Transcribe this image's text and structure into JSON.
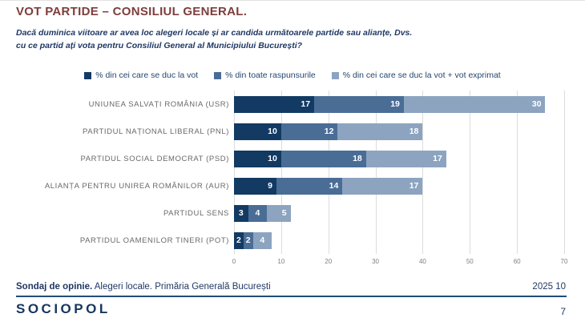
{
  "header": {
    "title": "VOT PARTIDE – CONSILIUL GENERAL.",
    "question": "Dacă duminica viitoare ar avea loc alegeri locale și ar candida următoarele partide sau alianțe, Dvs. cu ce partid ați vota pentru Consiliul General al Municipiului București?"
  },
  "chart_data": {
    "type": "bar",
    "orientation": "horizontal_stacked",
    "title": "",
    "categories": [
      "UNIUNEA SALVAȚI ROMÂNIA (USR)",
      "PARTIDUL NAȚIONAL LIBERAL (PNL)",
      "PARTIDUL SOCIAL DEMOCRAT (PSD)",
      "ALIANȚA PENTRU UNIREA ROMÂNILOR (AUR)",
      "PARTIDUL SENS",
      "PARTIDUL OAMENILOR TINERI (POT)"
    ],
    "series": [
      {
        "name": "% din cei care se duc la vot",
        "color": "#123A63",
        "values": [
          17,
          10,
          10,
          9,
          3,
          2
        ]
      },
      {
        "name": "% din toate raspunsurile",
        "color": "#4A6D96",
        "values": [
          19,
          12,
          18,
          14,
          4,
          2
        ]
      },
      {
        "name": "% din cei care se duc la vot + vot exprimat",
        "color": "#8CA4C0",
        "values": [
          30,
          18,
          17,
          17,
          5,
          4
        ]
      }
    ],
    "xlim": [
      0,
      70
    ],
    "xticks": [
      0,
      10,
      20,
      30,
      40,
      50,
      60,
      70
    ],
    "grid": true,
    "legend_position": "top",
    "value_labels": "inside_end",
    "value_label_color": "#ffffff"
  },
  "footer": {
    "source_bold": "Sondaj de opinie.",
    "source_rest": " Alegeri locale. Primăria Generală București",
    "date": "2025 10",
    "logo": "SOCIOPOL",
    "page_number": "7"
  }
}
